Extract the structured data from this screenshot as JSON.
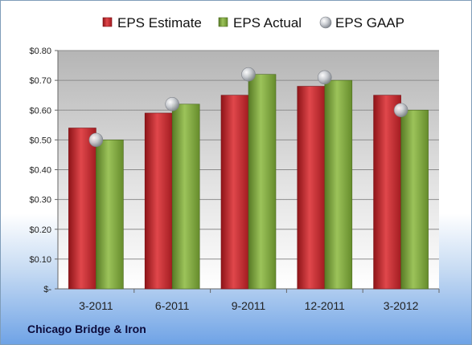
{
  "company": "Chicago Bridge & Iron",
  "colors": {
    "estimate": "#c0272d",
    "actual": "#79a23a",
    "gaap": "#a9adb3"
  },
  "chart_data": {
    "type": "bar",
    "categories": [
      "3-2011",
      "6-2011",
      "9-2011",
      "12-2011",
      "3-2012"
    ],
    "series": [
      {
        "name": "EPS Estimate",
        "values": [
          0.54,
          0.59,
          0.65,
          0.68,
          0.65
        ]
      },
      {
        "name": "EPS Actual",
        "values": [
          0.5,
          0.62,
          0.72,
          0.7,
          0.6
        ]
      },
      {
        "name": "EPS GAAP",
        "type": "scatter",
        "values": [
          0.5,
          0.62,
          0.72,
          0.71,
          0.6
        ]
      }
    ],
    "ylim": [
      0,
      0.8
    ],
    "yticks": [
      0,
      0.1,
      0.2,
      0.3,
      0.4,
      0.5,
      0.6,
      0.7,
      0.8
    ],
    "ytick_labels": [
      "$-",
      "$0.10",
      "$0.20",
      "$0.30",
      "$0.40",
      "$0.50",
      "$0.60",
      "$0.70",
      "$0.80"
    ],
    "legend_position": "top",
    "grid": true
  }
}
